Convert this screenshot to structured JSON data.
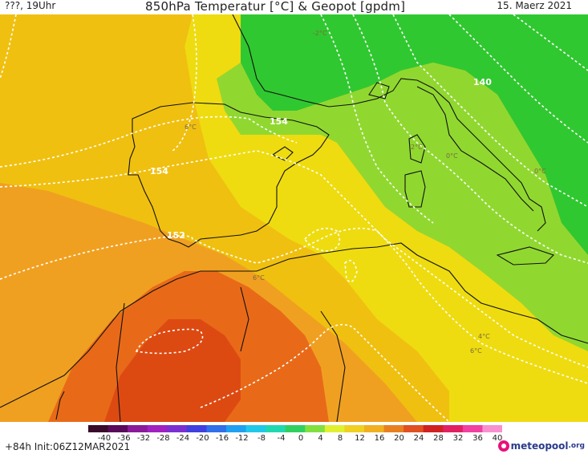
{
  "header": {
    "left": "???, 19Uhr",
    "title": "850hPa Temperatur [°C] & Geopot [gpdm]",
    "date": "15. Maerz 2021"
  },
  "map": {
    "contour_labels": [
      "154",
      "154",
      "152",
      "140"
    ],
    "temp_labels": [
      "-2°C",
      "2°C",
      "0°C",
      "0°C",
      "6°C",
      "4°C",
      "6°C",
      "6°C"
    ]
  },
  "colorbar": {
    "ticks": [
      "-40",
      "-36",
      "-32",
      "-28",
      "-24",
      "-20",
      "-16",
      "-12",
      "-8",
      "-4",
      "0",
      "4",
      "8",
      "12",
      "16",
      "20",
      "24",
      "28",
      "32",
      "36",
      "40"
    ],
    "colors": [
      "#3a0a2a",
      "#5a0a5a",
      "#8a1a9a",
      "#a020c0",
      "#7a30d0",
      "#4040e0",
      "#3070e8",
      "#20a0f0",
      "#20c8e8",
      "#20d8b0",
      "#30d060",
      "#80e040",
      "#e0f030",
      "#f0d020",
      "#f0b020",
      "#e88020",
      "#e05020",
      "#d02020",
      "#e02060",
      "#f040a0",
      "#f890d0"
    ]
  },
  "footer": {
    "init": "+84h  Init:06Z12MAR2021",
    "logo_name": "meteopool",
    "logo_tld": ".org"
  }
}
